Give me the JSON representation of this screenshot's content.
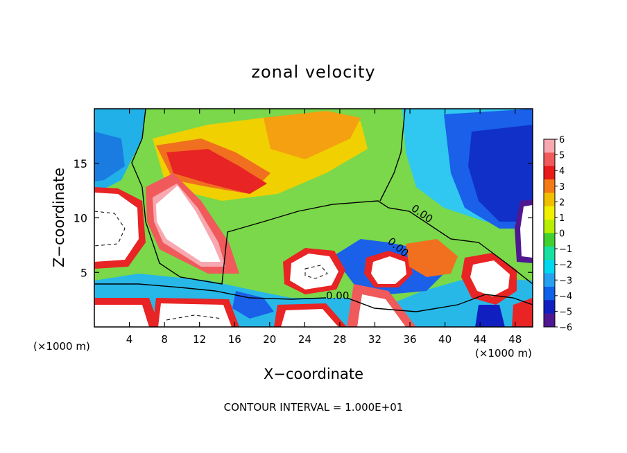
{
  "chart_data": {
    "type": "heatmap",
    "title": "zonal velocity",
    "xlabel": "X−coordinate",
    "ylabel": "Z−coordinate",
    "x_unit": "(×1000 m)",
    "z_unit": "(×1000 m)",
    "xlim": [
      0,
      50
    ],
    "ylim": [
      0,
      20
    ],
    "x_ticks": [
      4,
      8,
      12,
      16,
      20,
      24,
      28,
      32,
      36,
      40,
      44,
      48
    ],
    "y_ticks": [
      5,
      10,
      15
    ],
    "footer": "CONTOUR INTERVAL = 1.000E+01",
    "contour_labels": [
      "0.00",
      "0.00",
      "0.00"
    ],
    "colorbar": {
      "levels": [
        6,
        5,
        4,
        3,
        2,
        1,
        0,
        -1,
        -2,
        -3,
        -4,
        -5,
        -6
      ],
      "level_labels": [
        "6",
        "5",
        "4",
        "3",
        "2",
        "1",
        "0",
        "−1",
        "−2",
        "−3",
        "−4",
        "−5",
        "−6"
      ],
      "colors": [
        "#f7a8b0",
        "#f05a5a",
        "#e81a1a",
        "#f47a16",
        "#f0c000",
        "#f0f000",
        "#b8ee00",
        "#40d030",
        "#18e0a0",
        "#00d8f0",
        "#28a0f0",
        "#1060e8",
        "#1020c0",
        "#501890"
      ],
      "out_of_range_color": "#ffffff"
    },
    "features": [
      {
        "x": 9.5,
        "z": 9.5,
        "value": 7,
        "description": "strong positive jet core"
      },
      {
        "x": 12,
        "z": 14,
        "value": 4,
        "description": "positive region aloft"
      },
      {
        "x": 28,
        "z": 17,
        "value": 3,
        "description": "weak positive region aloft"
      },
      {
        "x": 44,
        "z": 15,
        "value": -5,
        "description": "negative region aloft"
      },
      {
        "x": 24,
        "z": 5.5,
        "value": 7,
        "description": "positive core near surface"
      },
      {
        "x": 33,
        "z": 5.5,
        "value": 7,
        "description": "positive core near surface"
      },
      {
        "x": 45,
        "z": 4.5,
        "value": 7,
        "description": "positive core near surface"
      }
    ]
  }
}
